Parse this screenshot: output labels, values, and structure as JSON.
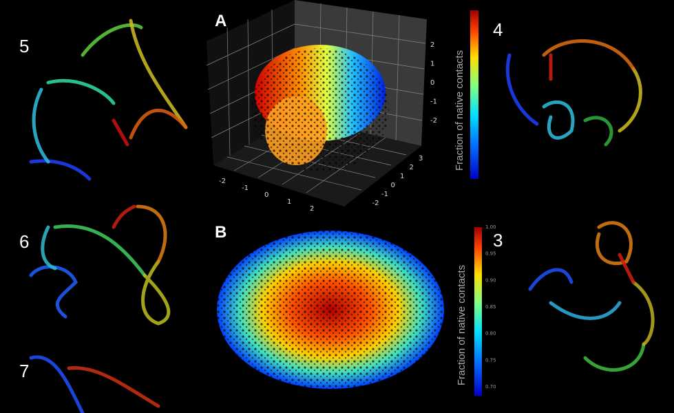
{
  "structures": {
    "s5": "5",
    "s4": "4",
    "s6": "6",
    "s3": "3",
    "s7": "7"
  },
  "panel_a": {
    "label": "A",
    "colorbar_label": "Fraction of native contacts",
    "x_ticks": [
      "-2",
      "-1",
      "0",
      "1",
      "2"
    ],
    "y_ticks": [
      "3",
      "2",
      "1",
      "0",
      "-1",
      "-2"
    ],
    "z_ticks": [
      "2",
      "1",
      "0",
      "-1",
      "-2"
    ]
  },
  "panel_b": {
    "label": "B",
    "colorbar_label": "Fraction of native contacts",
    "colorbar_ticks": [
      "1.00",
      "0.95",
      "0.90",
      "0.85",
      "0.80",
      "0.75",
      "0.70"
    ]
  }
}
